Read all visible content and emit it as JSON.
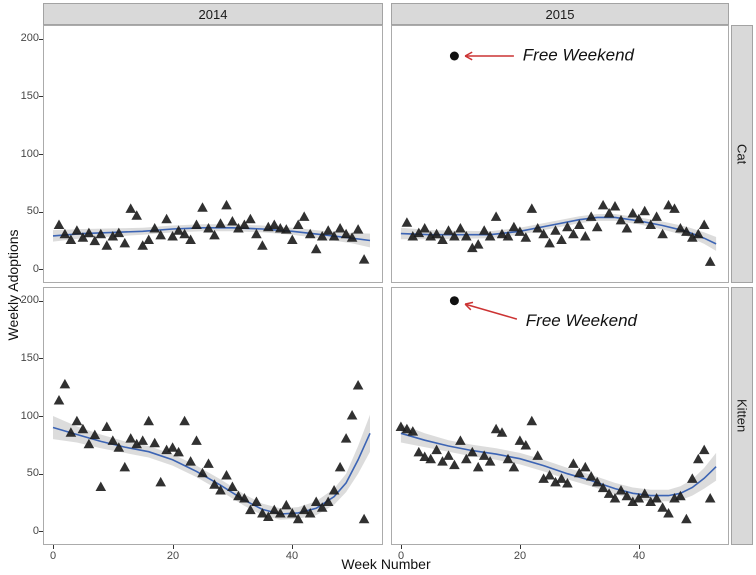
{
  "ui": {
    "x_axis_title": "Week Number",
    "y_axis_title": "Weekly Adoptions"
  },
  "colors": {
    "smooth_line": "#3c64b4",
    "ribbon": "#c4c4c4",
    "point": "#1b1b1b",
    "arrow": "#cc3333",
    "annotation_dot": "#111111",
    "annotation_text": "#111111",
    "strip_bg": "#d9d9d9",
    "panel_border": "#ababab",
    "tick_text": "#474747"
  },
  "chart_data": {
    "type": "scatter",
    "subtype": "faceted scatter with loess smooth and confidence ribbon",
    "xlabel": "Week Number",
    "ylabel": "Weekly Adoptions",
    "facet_cols": [
      "2014",
      "2015"
    ],
    "facet_rows": [
      "Cat",
      "Kitten"
    ],
    "x_ticks": [
      0,
      20,
      40
    ],
    "y_ticks": [
      0,
      50,
      100,
      150,
      200
    ],
    "xlim": [
      -1.5,
      55
    ],
    "ylim": [
      -11,
      211
    ],
    "grid": false,
    "legend": "none",
    "facets": [
      {
        "row": "Cat",
        "col": "2014",
        "points": [
          [
            1,
            38
          ],
          [
            2,
            30
          ],
          [
            3,
            25
          ],
          [
            4,
            33
          ],
          [
            5,
            27
          ],
          [
            6,
            31
          ],
          [
            7,
            24
          ],
          [
            8,
            30
          ],
          [
            9,
            20
          ],
          [
            10,
            28
          ],
          [
            11,
            31
          ],
          [
            12,
            22
          ],
          [
            13,
            52
          ],
          [
            14,
            46
          ],
          [
            15,
            20
          ],
          [
            16,
            25
          ],
          [
            17,
            35
          ],
          [
            18,
            29
          ],
          [
            19,
            43
          ],
          [
            20,
            28
          ],
          [
            21,
            33
          ],
          [
            22,
            30
          ],
          [
            23,
            25
          ],
          [
            24,
            38
          ],
          [
            25,
            53
          ],
          [
            26,
            35
          ],
          [
            27,
            29
          ],
          [
            28,
            39
          ],
          [
            29,
            55
          ],
          [
            30,
            41
          ],
          [
            31,
            35
          ],
          [
            32,
            38
          ],
          [
            33,
            43
          ],
          [
            34,
            30
          ],
          [
            35,
            20
          ],
          [
            36,
            36
          ],
          [
            37,
            38
          ],
          [
            38,
            35
          ],
          [
            39,
            34
          ],
          [
            40,
            25
          ],
          [
            41,
            38
          ],
          [
            42,
            45
          ],
          [
            43,
            30
          ],
          [
            44,
            17
          ],
          [
            45,
            28
          ],
          [
            46,
            33
          ],
          [
            47,
            28
          ],
          [
            48,
            35
          ],
          [
            49,
            30
          ],
          [
            50,
            27
          ],
          [
            51,
            34
          ],
          [
            52,
            8
          ]
        ],
        "smooth": [
          [
            0,
            29,
            5
          ],
          [
            5,
            31,
            4
          ],
          [
            10,
            32,
            3.5
          ],
          [
            15,
            33,
            3
          ],
          [
            20,
            35,
            3
          ],
          [
            25,
            36,
            3
          ],
          [
            30,
            36,
            3
          ],
          [
            35,
            35,
            3
          ],
          [
            40,
            33,
            3
          ],
          [
            45,
            30,
            3.5
          ],
          [
            50,
            27,
            4.5
          ],
          [
            53,
            25,
            6
          ]
        ],
        "annotation": null
      },
      {
        "row": "Cat",
        "col": "2015",
        "points": [
          [
            1,
            40
          ],
          [
            2,
            28
          ],
          [
            3,
            31
          ],
          [
            4,
            35
          ],
          [
            5,
            28
          ],
          [
            6,
            30
          ],
          [
            7,
            25
          ],
          [
            8,
            33
          ],
          [
            9,
            28
          ],
          [
            10,
            35
          ],
          [
            11,
            28
          ],
          [
            12,
            18
          ],
          [
            13,
            21
          ],
          [
            14,
            33
          ],
          [
            15,
            28
          ],
          [
            16,
            45
          ],
          [
            17,
            30
          ],
          [
            18,
            28
          ],
          [
            19,
            36
          ],
          [
            20,
            32
          ],
          [
            21,
            27
          ],
          [
            22,
            52
          ],
          [
            23,
            35
          ],
          [
            24,
            30
          ],
          [
            25,
            22
          ],
          [
            26,
            33
          ],
          [
            27,
            25
          ],
          [
            28,
            36
          ],
          [
            29,
            30
          ],
          [
            30,
            38
          ],
          [
            31,
            28
          ],
          [
            32,
            45
          ],
          [
            33,
            36
          ],
          [
            34,
            55
          ],
          [
            35,
            48
          ],
          [
            36,
            54
          ],
          [
            37,
            42
          ],
          [
            38,
            35
          ],
          [
            39,
            48
          ],
          [
            40,
            43
          ],
          [
            41,
            50
          ],
          [
            42,
            38
          ],
          [
            43,
            45
          ],
          [
            44,
            30
          ],
          [
            45,
            55
          ],
          [
            46,
            52
          ],
          [
            47,
            35
          ],
          [
            48,
            32
          ],
          [
            49,
            27
          ],
          [
            50,
            30
          ],
          [
            51,
            38
          ],
          [
            52,
            6
          ]
        ],
        "smooth": [
          [
            0,
            31,
            5
          ],
          [
            5,
            30,
            4
          ],
          [
            10,
            30,
            3.5
          ],
          [
            15,
            30,
            3
          ],
          [
            20,
            33,
            3
          ],
          [
            25,
            38,
            3
          ],
          [
            30,
            43,
            3
          ],
          [
            33,
            45,
            3
          ],
          [
            36,
            45,
            3
          ],
          [
            40,
            42,
            3
          ],
          [
            44,
            38,
            3.5
          ],
          [
            48,
            33,
            4
          ],
          [
            51,
            27,
            5
          ],
          [
            53,
            22,
            6
          ]
        ],
        "annotation": {
          "label": "Free Weekend",
          "dot": [
            9,
            185
          ],
          "label_at": [
            20.5,
            185
          ],
          "arrow_from": [
            19,
            185
          ],
          "arrow_to": [
            10.8,
            185
          ]
        }
      },
      {
        "row": "Kitten",
        "col": "2014",
        "points": [
          [
            1,
            113
          ],
          [
            2,
            127
          ],
          [
            3,
            85
          ],
          [
            4,
            95
          ],
          [
            5,
            88
          ],
          [
            6,
            75
          ],
          [
            7,
            83
          ],
          [
            8,
            38
          ],
          [
            9,
            90
          ],
          [
            10,
            78
          ],
          [
            11,
            72
          ],
          [
            12,
            55
          ],
          [
            13,
            80
          ],
          [
            14,
            75
          ],
          [
            15,
            78
          ],
          [
            16,
            95
          ],
          [
            17,
            76
          ],
          [
            18,
            42
          ],
          [
            19,
            70
          ],
          [
            20,
            72
          ],
          [
            21,
            68
          ],
          [
            22,
            95
          ],
          [
            23,
            60
          ],
          [
            24,
            78
          ],
          [
            25,
            50
          ],
          [
            26,
            58
          ],
          [
            27,
            40
          ],
          [
            28,
            35
          ],
          [
            29,
            48
          ],
          [
            30,
            38
          ],
          [
            31,
            30
          ],
          [
            32,
            28
          ],
          [
            33,
            18
          ],
          [
            34,
            25
          ],
          [
            35,
            15
          ],
          [
            36,
            12
          ],
          [
            37,
            18
          ],
          [
            38,
            15
          ],
          [
            39,
            22
          ],
          [
            40,
            15
          ],
          [
            41,
            10
          ],
          [
            42,
            18
          ],
          [
            43,
            15
          ],
          [
            44,
            25
          ],
          [
            45,
            20
          ],
          [
            46,
            25
          ],
          [
            47,
            35
          ],
          [
            48,
            55
          ],
          [
            49,
            80
          ],
          [
            50,
            100
          ],
          [
            51,
            126
          ],
          [
            52,
            10
          ]
        ],
        "smooth": [
          [
            0,
            90,
            10
          ],
          [
            4,
            84,
            7
          ],
          [
            8,
            78,
            6
          ],
          [
            12,
            73,
            5
          ],
          [
            16,
            69,
            5
          ],
          [
            20,
            62,
            5
          ],
          [
            24,
            52,
            5
          ],
          [
            28,
            40,
            5
          ],
          [
            32,
            27,
            5
          ],
          [
            35,
            19,
            5
          ],
          [
            38,
            15,
            5
          ],
          [
            41,
            16,
            5
          ],
          [
            44,
            20,
            6
          ],
          [
            47,
            30,
            7
          ],
          [
            49,
            42,
            8
          ],
          [
            51,
            62,
            12
          ],
          [
            53,
            85,
            16
          ]
        ],
        "annotation": null
      },
      {
        "row": "Kitten",
        "col": "2015",
        "points": [
          [
            0,
            90
          ],
          [
            1,
            88
          ],
          [
            2,
            86
          ],
          [
            3,
            68
          ],
          [
            4,
            64
          ],
          [
            5,
            62
          ],
          [
            6,
            70
          ],
          [
            7,
            60
          ],
          [
            8,
            65
          ],
          [
            9,
            57
          ],
          [
            10,
            78
          ],
          [
            11,
            62
          ],
          [
            12,
            68
          ],
          [
            13,
            55
          ],
          [
            14,
            65
          ],
          [
            15,
            60
          ],
          [
            16,
            88
          ],
          [
            17,
            85
          ],
          [
            18,
            62
          ],
          [
            19,
            55
          ],
          [
            20,
            78
          ],
          [
            21,
            74
          ],
          [
            22,
            95
          ],
          [
            23,
            65
          ],
          [
            24,
            45
          ],
          [
            25,
            48
          ],
          [
            26,
            42
          ],
          [
            27,
            45
          ],
          [
            28,
            41
          ],
          [
            29,
            58
          ],
          [
            30,
            50
          ],
          [
            31,
            55
          ],
          [
            32,
            47
          ],
          [
            33,
            42
          ],
          [
            34,
            37
          ],
          [
            35,
            32
          ],
          [
            36,
            28
          ],
          [
            37,
            35
          ],
          [
            38,
            30
          ],
          [
            39,
            25
          ],
          [
            40,
            28
          ],
          [
            41,
            32
          ],
          [
            42,
            25
          ],
          [
            43,
            28
          ],
          [
            44,
            20
          ],
          [
            45,
            15
          ],
          [
            46,
            28
          ],
          [
            47,
            30
          ],
          [
            48,
            10
          ],
          [
            49,
            45
          ],
          [
            50,
            62
          ],
          [
            51,
            70
          ],
          [
            52,
            28
          ]
        ],
        "smooth": [
          [
            0,
            85,
            8
          ],
          [
            4,
            79,
            6
          ],
          [
            8,
            74,
            5
          ],
          [
            12,
            70,
            5
          ],
          [
            16,
            67,
            5
          ],
          [
            20,
            63,
            5
          ],
          [
            24,
            57,
            5
          ],
          [
            28,
            50,
            5
          ],
          [
            32,
            44,
            5
          ],
          [
            36,
            37,
            5
          ],
          [
            39,
            33,
            5
          ],
          [
            42,
            31,
            5
          ],
          [
            45,
            31,
            5
          ],
          [
            47,
            33,
            6
          ],
          [
            49,
            38,
            7
          ],
          [
            51,
            46,
            9
          ],
          [
            53,
            56,
            12
          ]
        ],
        "annotation": {
          "label": "Free Weekend",
          "dot": [
            9,
            200
          ],
          "label_at": [
            21,
            182
          ],
          "arrow_from": [
            19.5,
            184
          ],
          "arrow_to": [
            10.8,
            197
          ]
        }
      }
    ]
  }
}
